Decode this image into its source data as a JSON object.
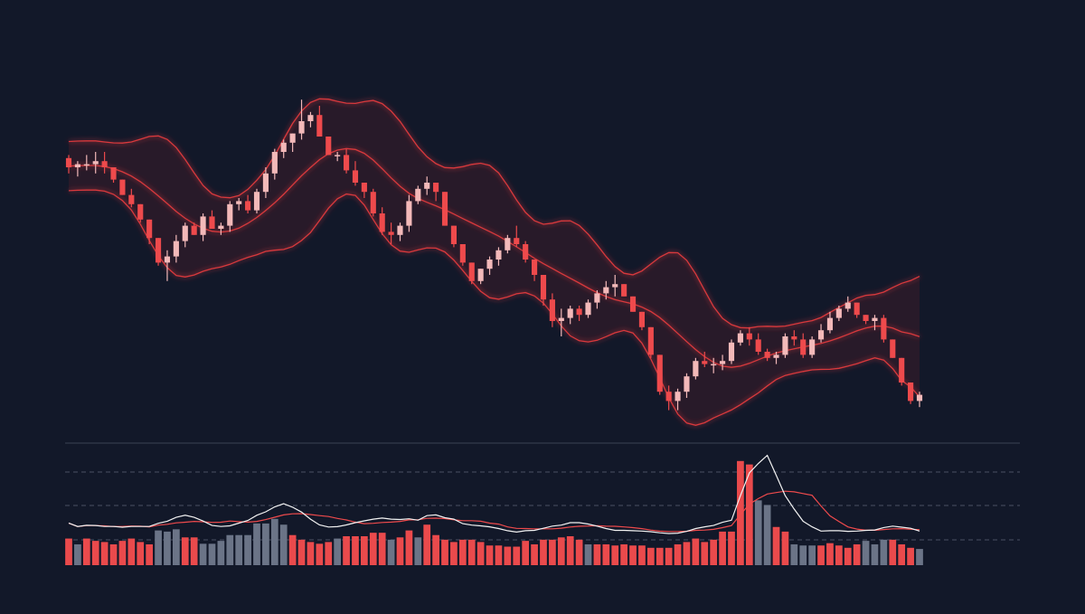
{
  "colors": {
    "background": "#121829",
    "bear": "#ee4a4c",
    "bull": "#f3b9b9",
    "band": "#d9393d",
    "band_fill": "#3a1d2a",
    "volume_up": "#ea4a4c",
    "volume_down": "#6b7487",
    "vol_avg_fast": "#f2f2f2",
    "vol_avg_slow": "#ee4a4c",
    "divider": "#3b4254",
    "guide": "#4a5163"
  },
  "chart_data": [
    {
      "type": "candlestick",
      "title": "",
      "xlabel": "",
      "ylabel": "",
      "ylim": [
        0,
        100
      ],
      "grid": false,
      "legend": "none",
      "indicator": "bollinger-bands",
      "candles": [
        [
          78,
          79,
          73,
          75
        ],
        [
          75,
          77,
          72,
          76
        ],
        [
          76,
          79,
          74,
          76
        ],
        [
          76,
          80,
          73,
          77
        ],
        [
          77,
          80,
          73,
          75
        ],
        [
          75,
          75,
          70,
          71
        ],
        [
          71,
          71,
          66,
          66
        ],
        [
          66,
          68,
          62,
          63
        ],
        [
          63,
          63,
          57,
          58
        ],
        [
          58,
          58,
          50,
          52
        ],
        [
          52,
          52,
          43,
          44
        ],
        [
          44,
          48,
          38,
          46
        ],
        [
          46,
          53,
          44,
          51
        ],
        [
          51,
          57,
          49,
          56
        ],
        [
          56,
          57,
          53,
          53
        ],
        [
          53,
          60,
          51,
          59
        ],
        [
          59,
          61,
          55,
          55
        ],
        [
          55,
          57,
          53,
          56
        ],
        [
          56,
          64,
          54,
          63
        ],
        [
          63,
          65,
          61,
          64
        ],
        [
          64,
          66,
          60,
          61
        ],
        [
          61,
          68,
          60,
          67
        ],
        [
          67,
          75,
          65,
          73
        ],
        [
          73,
          81,
          71,
          80
        ],
        [
          80,
          84,
          78,
          83
        ],
        [
          83,
          86,
          80,
          86
        ],
        [
          86,
          97,
          84,
          90
        ],
        [
          90,
          93,
          88,
          92
        ],
        [
          92,
          95,
          86,
          85
        ],
        [
          85,
          85,
          79,
          79
        ],
        [
          79,
          80,
          77,
          79
        ],
        [
          79,
          81,
          73,
          74
        ],
        [
          74,
          77,
          69,
          70
        ],
        [
          70,
          70,
          65,
          67
        ],
        [
          67,
          68,
          59,
          60
        ],
        [
          60,
          62,
          53,
          54
        ],
        [
          54,
          57,
          50,
          53
        ],
        [
          53,
          57,
          51,
          56
        ],
        [
          56,
          66,
          54,
          64
        ],
        [
          64,
          69,
          63,
          68
        ],
        [
          68,
          72,
          66,
          70
        ],
        [
          70,
          70,
          64,
          67
        ],
        [
          67,
          67,
          56,
          56
        ],
        [
          56,
          56,
          49,
          50
        ],
        [
          50,
          50,
          43,
          44
        ],
        [
          44,
          44,
          37,
          38
        ],
        [
          38,
          42,
          37,
          42
        ],
        [
          42,
          46,
          40,
          45
        ],
        [
          45,
          49,
          43,
          48
        ],
        [
          48,
          53,
          47,
          52
        ],
        [
          52,
          56,
          49,
          50
        ],
        [
          50,
          51,
          44,
          45
        ],
        [
          45,
          45,
          38,
          40
        ],
        [
          40,
          40,
          30,
          32
        ],
        [
          32,
          34,
          23,
          25
        ],
        [
          25,
          29,
          20,
          26
        ],
        [
          26,
          30,
          24,
          29
        ],
        [
          29,
          30,
          25,
          27
        ],
        [
          27,
          32,
          26,
          31
        ],
        [
          31,
          35,
          29,
          34
        ],
        [
          34,
          38,
          32,
          36
        ],
        [
          36,
          40,
          33,
          37
        ],
        [
          37,
          37,
          33,
          33
        ],
        [
          33,
          33,
          28,
          28
        ],
        [
          28,
          28,
          22,
          23
        ],
        [
          23,
          23,
          13,
          14
        ],
        [
          14,
          14,
          1,
          2
        ],
        [
          2,
          4,
          -4,
          -1
        ],
        [
          -1,
          3,
          -4,
          2
        ],
        [
          2,
          8,
          0,
          7
        ],
        [
          7,
          13,
          6,
          12
        ],
        [
          12,
          15,
          10,
          11
        ],
        [
          11,
          13,
          8,
          11
        ],
        [
          11,
          14,
          9,
          12
        ],
        [
          12,
          19,
          11,
          18
        ],
        [
          18,
          22,
          17,
          21
        ],
        [
          21,
          23,
          17,
          19
        ],
        [
          19,
          21,
          14,
          15
        ],
        [
          15,
          16,
          12,
          13
        ],
        [
          13,
          15,
          11,
          14
        ],
        [
          14,
          21,
          13,
          20
        ],
        [
          20,
          22,
          17,
          19
        ],
        [
          19,
          21,
          13,
          14
        ],
        [
          14,
          20,
          13,
          19
        ],
        [
          19,
          24,
          18,
          22
        ],
        [
          22,
          28,
          21,
          26
        ],
        [
          26,
          30,
          25,
          29
        ],
        [
          29,
          33,
          28,
          31
        ],
        [
          31,
          31,
          26,
          27
        ],
        [
          27,
          27,
          24,
          25
        ],
        [
          25,
          27,
          22,
          26
        ],
        [
          26,
          27,
          18,
          19
        ],
        [
          19,
          19,
          13,
          13
        ],
        [
          13,
          13,
          4,
          5
        ],
        [
          5,
          5,
          -2,
          -1
        ],
        [
          -1,
          2,
          -3,
          1
        ]
      ]
    },
    {
      "type": "bar",
      "title": "",
      "series": [
        {
          "name": "",
          "values": [
            4.6,
            3.6,
            4.6,
            4.2,
            4.0,
            3.6,
            4.2,
            4.6,
            4.0,
            3.6,
            6.0,
            5.8,
            6.2,
            4.8,
            4.8,
            3.7,
            3.7,
            4.2,
            5.2,
            5.2,
            5.2,
            7.2,
            7.2,
            8.0,
            7.0,
            5.2,
            4.4,
            4.0,
            3.7,
            4.0,
            4.6,
            5.0,
            5.0,
            5.0,
            5.6,
            5.6,
            4.4,
            4.8,
            6.0,
            4.8,
            7.0,
            5.2,
            4.4,
            4.0,
            4.4,
            4.4,
            4.0,
            3.4,
            3.4,
            3.2,
            3.2,
            4.2,
            3.6,
            4.4,
            4.4,
            4.8,
            5.0,
            4.4,
            3.6,
            3.6,
            3.6,
            3.4,
            3.6,
            3.4,
            3.4,
            3.0,
            3.0,
            3.0,
            3.6,
            4.0,
            4.6,
            4.0,
            4.4,
            5.8,
            5.8,
            18.0,
            17.4,
            11.2,
            10.4,
            6.6,
            5.8,
            3.6,
            3.4,
            3.4,
            3.4,
            3.8,
            3.4,
            3.0,
            3.6,
            4.2,
            3.6,
            4.4,
            4.4,
            3.6,
            3.0,
            2.8
          ]
        }
      ],
      "series_colors_up": [
        true,
        false,
        true,
        true,
        true,
        true,
        true,
        true,
        true,
        true,
        false,
        false,
        false,
        true,
        true,
        false,
        false,
        false,
        false,
        false,
        false,
        false,
        false,
        false,
        false,
        true,
        true,
        true,
        true,
        true,
        false,
        true,
        true,
        true,
        true,
        true,
        false,
        true,
        true,
        false,
        true,
        true,
        true,
        true,
        true,
        true,
        true,
        true,
        true,
        true,
        true,
        true,
        true,
        true,
        true,
        true,
        true,
        true,
        false,
        true,
        true,
        true,
        true,
        true,
        true,
        true,
        true,
        true,
        true,
        true,
        true,
        true,
        true,
        true,
        true,
        true,
        true,
        false,
        false,
        true,
        true,
        false,
        false,
        false,
        true,
        true,
        true,
        true,
        true,
        false,
        false,
        false,
        true,
        true,
        true,
        false
      ],
      "ylim": [
        0,
        20
      ]
    }
  ]
}
